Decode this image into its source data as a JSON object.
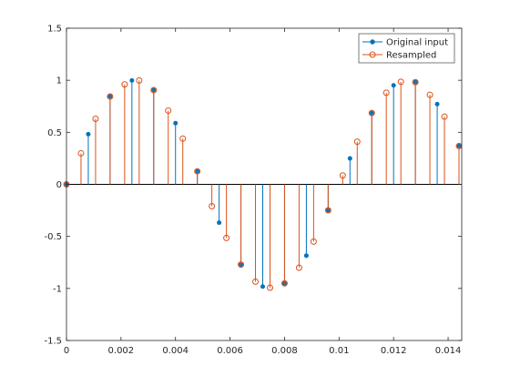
{
  "chart_data": {
    "type": "stem",
    "xlim": [
      0,
      0.0145
    ],
    "ylim": [
      -1.5,
      1.5
    ],
    "xticks": [
      0,
      0.002,
      0.004,
      0.006,
      0.008,
      0.01,
      0.012,
      0.014
    ],
    "xtick_labels": [
      "0",
      "0.002",
      "0.004",
      "0.006",
      "0.008",
      "0.01",
      "0.012",
      "0.014"
    ],
    "yticks": [
      -1.5,
      -1,
      -0.5,
      0,
      0.5,
      1,
      1.5
    ],
    "ytick_labels": [
      "-1.5",
      "-1",
      "-0.5",
      "0",
      "0.5",
      "1",
      "1.5"
    ],
    "grid": false,
    "legend_position": "top-right",
    "series": [
      {
        "name": "Original input",
        "color": "#0072BD",
        "marker": "dot",
        "x": [
          0,
          0.0008,
          0.0016,
          0.0024,
          0.0032,
          0.004,
          0.0048,
          0.0056,
          0.0064,
          0.0072,
          0.008,
          0.0088,
          0.0096,
          0.0104,
          0.0112,
          0.012,
          0.0128,
          0.0136,
          0.0144
        ],
        "y": [
          0,
          0.482,
          0.844,
          0.998,
          0.905,
          0.588,
          0.125,
          -0.368,
          -0.771,
          -0.982,
          -0.951,
          -0.685,
          -0.249,
          0.249,
          0.685,
          0.951,
          0.982,
          0.771,
          0.368
        ]
      },
      {
        "name": "Resampled",
        "color": "#D95319",
        "marker": "open-circle",
        "x": [
          0,
          0.000533,
          0.001067,
          0.0016,
          0.002133,
          0.002667,
          0.0032,
          0.003733,
          0.004267,
          0.0048,
          0.005333,
          0.005867,
          0.0064,
          0.006933,
          0.007467,
          0.008,
          0.008533,
          0.009067,
          0.0096,
          0.010133,
          0.010667,
          0.0112,
          0.011733,
          0.012267,
          0.0128,
          0.013333,
          0.013867,
          0.0144
        ],
        "y": [
          0,
          0.298,
          0.63,
          0.844,
          0.96,
          0.998,
          0.905,
          0.708,
          0.44,
          0.125,
          -0.21,
          -0.515,
          -0.771,
          -0.935,
          -0.993,
          -0.951,
          -0.8,
          -0.55,
          -0.249,
          0.085,
          0.41,
          0.685,
          0.88,
          0.985,
          0.982,
          0.86,
          0.65,
          0.368
        ]
      }
    ]
  }
}
